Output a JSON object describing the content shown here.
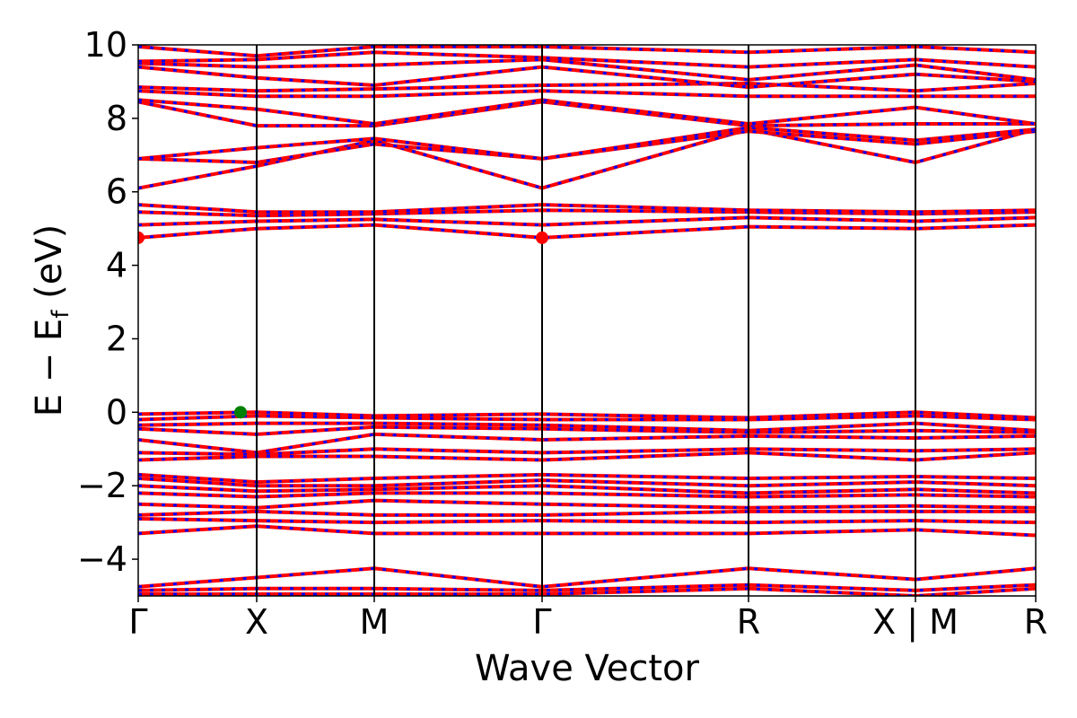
{
  "chart_data": {
    "type": "line",
    "xlabel": "Wave Vector",
    "ylabel": "E − E_f (eV)",
    "ylabel_main": "E − E",
    "ylabel_sub": "f",
    "ylabel_tail": " (eV)",
    "ylim": [
      -5,
      10
    ],
    "yticks": [
      -4,
      -2,
      0,
      2,
      4,
      6,
      8,
      10
    ],
    "ytick_labels": [
      "−4",
      "−2",
      "0",
      "2",
      "4",
      "6",
      "8",
      "10"
    ],
    "xlim": [
      0,
      1
    ],
    "kpoints": [
      {
        "label": "Γ",
        "x": 0.0
      },
      {
        "label": "X",
        "x": 0.132
      },
      {
        "label": "M",
        "x": 0.263
      },
      {
        "label": "Γ",
        "x": 0.45
      },
      {
        "label": "R",
        "x": 0.68
      },
      {
        "label": "X | M",
        "x": 0.866
      },
      {
        "label": "R",
        "x": 1.0
      }
    ],
    "series_colors": {
      "spin_up": "#ff0000",
      "spin_down": "#0000ff"
    },
    "highlight_points": [
      {
        "name": "CBM",
        "x": 0.0,
        "y": 4.75,
        "color": "#ff0000"
      },
      {
        "name": "CBM",
        "x": 0.45,
        "y": 4.75,
        "color": "#ff0000"
      },
      {
        "name": "VBM",
        "x": 0.114,
        "y": 0.0,
        "color": "#008000"
      }
    ],
    "bands": [
      {
        "x": [
          0,
          0.132,
          0.263,
          0.45,
          0.68,
          0.866,
          1.0
        ],
        "y": [
          4.75,
          5.0,
          5.1,
          4.75,
          5.05,
          5.0,
          5.1
        ]
      },
      {
        "x": [
          0,
          0.132,
          0.263,
          0.45,
          0.68,
          0.866,
          1.0
        ],
        "y": [
          5.1,
          5.2,
          5.25,
          5.1,
          5.3,
          5.2,
          5.3
        ]
      },
      {
        "x": [
          0,
          0.132,
          0.263,
          0.45,
          0.68,
          0.866,
          1.0
        ],
        "y": [
          5.45,
          5.35,
          5.4,
          5.5,
          5.45,
          5.4,
          5.45
        ]
      },
      {
        "x": [
          0,
          0.132,
          0.263,
          0.45,
          0.68,
          0.866,
          1.0
        ],
        "y": [
          5.65,
          5.45,
          5.45,
          5.65,
          5.5,
          5.45,
          5.5
        ]
      },
      {
        "x": [
          0,
          0.132,
          0.263,
          0.45,
          0.68,
          0.866,
          1.0
        ],
        "y": [
          6.1,
          6.7,
          7.4,
          6.1,
          7.7,
          6.8,
          7.7
        ]
      },
      {
        "x": [
          0,
          0.132,
          0.263,
          0.45,
          0.68,
          0.866,
          1.0
        ],
        "y": [
          6.9,
          6.8,
          7.3,
          6.9,
          7.65,
          7.3,
          7.65
        ]
      },
      {
        "x": [
          0,
          0.132,
          0.263,
          0.45,
          0.68,
          0.866,
          1.0
        ],
        "y": [
          6.9,
          7.2,
          7.45,
          6.9,
          7.75,
          7.4,
          7.7
        ]
      },
      {
        "x": [
          0,
          0.132,
          0.263,
          0.45,
          0.68,
          0.866,
          1.0
        ],
        "y": [
          8.45,
          7.8,
          7.8,
          8.45,
          7.8,
          7.85,
          7.85
        ]
      },
      {
        "x": [
          0,
          0.132,
          0.263,
          0.45,
          0.68,
          0.866,
          1.0
        ],
        "y": [
          8.5,
          8.25,
          7.85,
          8.5,
          7.85,
          8.3,
          7.85
        ]
      },
      {
        "x": [
          0,
          0.132,
          0.263,
          0.45,
          0.68,
          0.866,
          1.0
        ],
        "y": [
          8.75,
          8.6,
          8.6,
          8.75,
          8.6,
          8.6,
          8.6
        ]
      },
      {
        "x": [
          0,
          0.132,
          0.263,
          0.45,
          0.68,
          0.866,
          1.0
        ],
        "y": [
          8.85,
          8.75,
          8.8,
          8.9,
          8.95,
          8.75,
          8.95
        ]
      },
      {
        "x": [
          0,
          0.132,
          0.263,
          0.45,
          0.68,
          0.866,
          1.0
        ],
        "y": [
          9.4,
          9.1,
          8.9,
          9.4,
          8.85,
          9.2,
          9.0
        ]
      },
      {
        "x": [
          0,
          0.132,
          0.263,
          0.45,
          0.68,
          0.866,
          1.0
        ],
        "y": [
          9.5,
          9.4,
          9.45,
          9.6,
          9.05,
          9.45,
          9.05
        ]
      },
      {
        "x": [
          0,
          0.132,
          0.263,
          0.45,
          0.68,
          0.866,
          1.0
        ],
        "y": [
          9.55,
          9.6,
          9.8,
          9.65,
          9.4,
          9.6,
          9.4
        ]
      },
      {
        "x": [
          0,
          0.132,
          0.263,
          0.45,
          0.68,
          0.866,
          1.0
        ],
        "y": [
          9.95,
          9.7,
          9.95,
          9.95,
          9.8,
          9.95,
          9.8
        ]
      },
      {
        "x": [
          0,
          0.132,
          0.263,
          0.45,
          0.68,
          0.866,
          1.0
        ],
        "y": [
          -0.05,
          0.0,
          -0.1,
          -0.05,
          -0.15,
          0.0,
          -0.15
        ]
      },
      {
        "x": [
          0,
          0.132,
          0.263,
          0.45,
          0.68,
          0.866,
          1.0
        ],
        "y": [
          -0.2,
          -0.1,
          -0.15,
          -0.2,
          -0.2,
          -0.1,
          -0.2
        ]
      },
      {
        "x": [
          0,
          0.132,
          0.263,
          0.45,
          0.68,
          0.866,
          1.0
        ],
        "y": [
          -0.35,
          -0.3,
          -0.3,
          -0.35,
          -0.5,
          -0.3,
          -0.5
        ]
      },
      {
        "x": [
          0,
          0.132,
          0.263,
          0.45,
          0.68,
          0.866,
          1.0
        ],
        "y": [
          -0.45,
          -0.6,
          -0.4,
          -0.45,
          -0.55,
          -0.5,
          -0.55
        ]
      },
      {
        "x": [
          0,
          0.132,
          0.263,
          0.45,
          0.68,
          0.866,
          1.0
        ],
        "y": [
          -0.75,
          -1.1,
          -0.6,
          -0.75,
          -0.65,
          -0.7,
          -0.65
        ]
      },
      {
        "x": [
          0,
          0.132,
          0.263,
          0.45,
          0.68,
          0.866,
          1.0
        ],
        "y": [
          -1.1,
          -1.15,
          -1.0,
          -1.1,
          -1.0,
          -1.05,
          -1.0
        ]
      },
      {
        "x": [
          0,
          0.132,
          0.263,
          0.45,
          0.68,
          0.866,
          1.0
        ],
        "y": [
          -1.3,
          -1.2,
          -1.2,
          -1.3,
          -1.1,
          -1.3,
          -1.1
        ]
      },
      {
        "x": [
          0,
          0.132,
          0.263,
          0.45,
          0.68,
          0.866,
          1.0
        ],
        "y": [
          -1.7,
          -1.9,
          -1.8,
          -1.7,
          -1.8,
          -1.75,
          -1.8
        ]
      },
      {
        "x": [
          0,
          0.132,
          0.263,
          0.45,
          0.68,
          0.866,
          1.0
        ],
        "y": [
          -1.8,
          -2.0,
          -2.0,
          -1.85,
          -2.0,
          -1.9,
          -2.0
        ]
      },
      {
        "x": [
          0,
          0.132,
          0.263,
          0.45,
          0.68,
          0.866,
          1.0
        ],
        "y": [
          -2.0,
          -2.15,
          -2.1,
          -2.0,
          -2.2,
          -2.1,
          -2.2
        ]
      },
      {
        "x": [
          0,
          0.132,
          0.263,
          0.45,
          0.68,
          0.866,
          1.0
        ],
        "y": [
          -2.2,
          -2.3,
          -2.2,
          -2.2,
          -2.3,
          -2.25,
          -2.3
        ]
      },
      {
        "x": [
          0,
          0.132,
          0.263,
          0.45,
          0.68,
          0.866,
          1.0
        ],
        "y": [
          -2.5,
          -2.6,
          -2.4,
          -2.5,
          -2.6,
          -2.55,
          -2.6
        ]
      },
      {
        "x": [
          0,
          0.132,
          0.263,
          0.45,
          0.68,
          0.866,
          1.0
        ],
        "y": [
          -2.8,
          -2.7,
          -2.8,
          -2.8,
          -2.7,
          -2.7,
          -2.7
        ]
      },
      {
        "x": [
          0,
          0.132,
          0.263,
          0.45,
          0.68,
          0.866,
          1.0
        ],
        "y": [
          -2.9,
          -2.95,
          -3.0,
          -2.95,
          -3.0,
          -2.95,
          -3.0
        ]
      },
      {
        "x": [
          0,
          0.132,
          0.263,
          0.45,
          0.68,
          0.866,
          1.0
        ],
        "y": [
          -3.3,
          -3.1,
          -3.3,
          -3.3,
          -3.3,
          -3.2,
          -3.35
        ]
      },
      {
        "x": [
          0,
          0.132,
          0.263,
          0.45,
          0.68,
          0.866,
          1.0
        ],
        "y": [
          -4.75,
          -4.5,
          -4.25,
          -4.75,
          -4.25,
          -4.55,
          -4.25
        ]
      },
      {
        "x": [
          0,
          0.132,
          0.263,
          0.45,
          0.68,
          0.866,
          1.0
        ],
        "y": [
          -4.85,
          -4.8,
          -4.8,
          -4.85,
          -4.7,
          -4.85,
          -4.7
        ]
      },
      {
        "x": [
          0,
          0.132,
          0.263,
          0.45,
          0.68,
          0.866,
          1.0
        ],
        "y": [
          -4.95,
          -4.95,
          -4.95,
          -4.95,
          -4.8,
          -5.0,
          -4.8
        ]
      }
    ]
  }
}
